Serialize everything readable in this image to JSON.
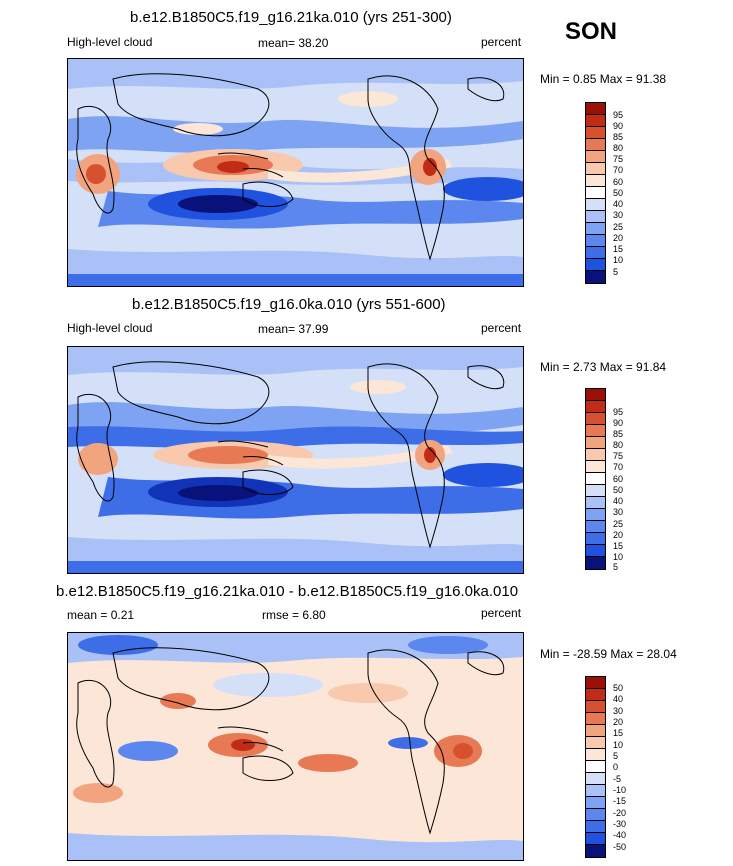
{
  "season": "SON",
  "panels": [
    {
      "title": "b.e12.B1850C5.f19_g16.21ka.010 (yrs 251-300)",
      "left_label": "High-level cloud",
      "center_label": "mean=  38.20",
      "right_label": "percent",
      "minmax": "Min =   0.85 Max =  91.38",
      "colorbar": [
        "95",
        "90",
        "85",
        "80",
        "75",
        "70",
        "60",
        "50",
        "40",
        "30",
        "25",
        "20",
        "15",
        "10",
        "5"
      ]
    },
    {
      "title": "b.e12.B1850C5.f19_g16.0ka.010 (yrs 551-600)",
      "left_label": "High-level cloud",
      "center_label": "mean=  37.99",
      "right_label": "percent",
      "minmax": "Min =   2.73 Max =  91.84",
      "colorbar": [
        "95",
        "90",
        "85",
        "80",
        "75",
        "70",
        "60",
        "50",
        "40",
        "30",
        "25",
        "20",
        "15",
        "10",
        "5"
      ]
    },
    {
      "title": "b.e12.B1850C5.f19_g16.21ka.010 - b.e12.B1850C5.f19_g16.0ka.010",
      "left_label": "mean =   0.21",
      "center_label": "rmse =   6.80",
      "right_label": "percent",
      "minmax": "Min = -28.59 Max =  28.04",
      "colorbar": [
        "50",
        "40",
        "30",
        "20",
        "15",
        "10",
        "5",
        "0",
        "-5",
        "-10",
        "-15",
        "-20",
        "-30",
        "-40",
        "-50"
      ]
    }
  ],
  "chart_data": {
    "type": "heatmap",
    "variable": "High-level cloud",
    "units": "percent",
    "season": "SON",
    "panels": [
      {
        "name": "b.e12.B1850C5.f19_g16.21ka.010 (yrs 251-300)",
        "mean": 38.2,
        "min": 0.85,
        "max": 91.38,
        "levels": [
          5,
          10,
          15,
          20,
          25,
          30,
          40,
          50,
          60,
          70,
          75,
          80,
          85,
          90,
          95
        ]
      },
      {
        "name": "b.e12.B1850C5.f19_g16.0ka.010 (yrs 551-600)",
        "mean": 37.99,
        "min": 2.73,
        "max": 91.84,
        "levels": [
          5,
          10,
          15,
          20,
          25,
          30,
          40,
          50,
          60,
          70,
          75,
          80,
          85,
          90,
          95
        ]
      },
      {
        "name": "b.e12.B1850C5.f19_g16.21ka.010 - b.e12.B1850C5.f19_g16.0ka.010",
        "mean": 0.21,
        "rmse": 6.8,
        "min": -28.59,
        "max": 28.04,
        "levels": [
          -50,
          -40,
          -30,
          -20,
          -15,
          -10,
          -5,
          0,
          5,
          10,
          15,
          20,
          30,
          40,
          50
        ]
      }
    ]
  },
  "colors": {
    "scale": [
      "#08127a",
      "#1133b8",
      "#1f52de",
      "#3d6ee8",
      "#5b87ef",
      "#7ea3f3",
      "#a9c1f6",
      "#d4e0f8",
      "#fbe6d8",
      "#f8c9ac",
      "#f2a47f",
      "#e77a55",
      "#d8512f",
      "#c22c17",
      "#9a0f06"
    ]
  }
}
